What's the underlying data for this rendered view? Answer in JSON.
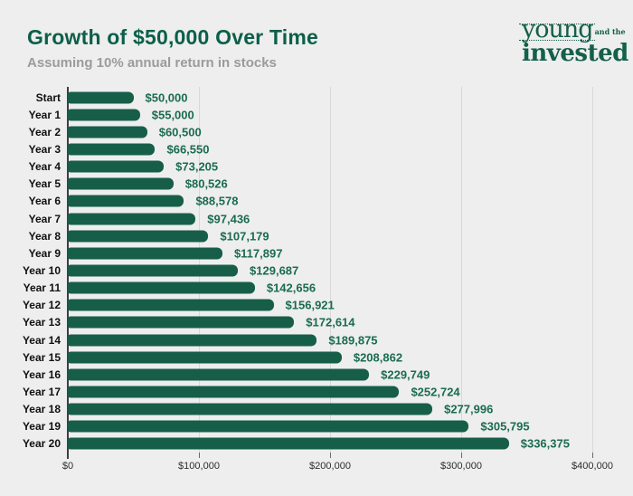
{
  "header": {
    "title": "Growth of $50,000 Over Time",
    "subtitle": "Assuming 10% annual return in stocks"
  },
  "logo": {
    "word1": "young",
    "word1_suffix": "and the",
    "word2": "invested"
  },
  "colors": {
    "background": "#edeeed",
    "title": "#0c5f4a",
    "subtitle": "#9b9b9b",
    "bar": "#175e49",
    "value_label": "#1b6b52",
    "category_label": "#101010",
    "gridline": "#d7d8d7",
    "axis_line": "#3f3f3f",
    "tick_label": "#2e2e2e",
    "logo": "#14604a"
  },
  "chart_data": {
    "type": "bar",
    "orientation": "horizontal",
    "title": "Growth of $50,000 Over Time",
    "subtitle": "Assuming 10% annual return in stocks",
    "categories": [
      "Start",
      "Year 1",
      "Year 2",
      "Year 3",
      "Year 4",
      "Year 5",
      "Year 6",
      "Year 7",
      "Year 8",
      "Year 9",
      "Year 10",
      "Year 11",
      "Year 12",
      "Year 13",
      "Year 14",
      "Year 15",
      "Year 16",
      "Year 17",
      "Year 18",
      "Year 19",
      "Year 20"
    ],
    "values": [
      50000,
      55000,
      60500,
      66550,
      73205,
      80526,
      88578,
      97436,
      107179,
      117897,
      129687,
      142656,
      156921,
      172614,
      189875,
      208862,
      229749,
      252724,
      277996,
      305795,
      336375
    ],
    "value_labels": [
      "$50,000",
      "$55,000",
      "$60,500",
      "$66,550",
      "$73,205",
      "$80,526",
      "$88,578",
      "$97,436",
      "$107,179",
      "$117,897",
      "$129,687",
      "$142,656",
      "$156,921",
      "$172,614",
      "$189,875",
      "$208,862",
      "$229,749",
      "$252,724",
      "$277,996",
      "$305,795",
      "$336,375"
    ],
    "x_axis": {
      "min": 0,
      "max": 400000,
      "ticks": [
        0,
        100000,
        200000,
        300000,
        400000
      ],
      "tick_labels": [
        "$0",
        "$100,000",
        "$200,000",
        "$300,000",
        "$400,000"
      ]
    },
    "grid": true,
    "legend": false
  }
}
